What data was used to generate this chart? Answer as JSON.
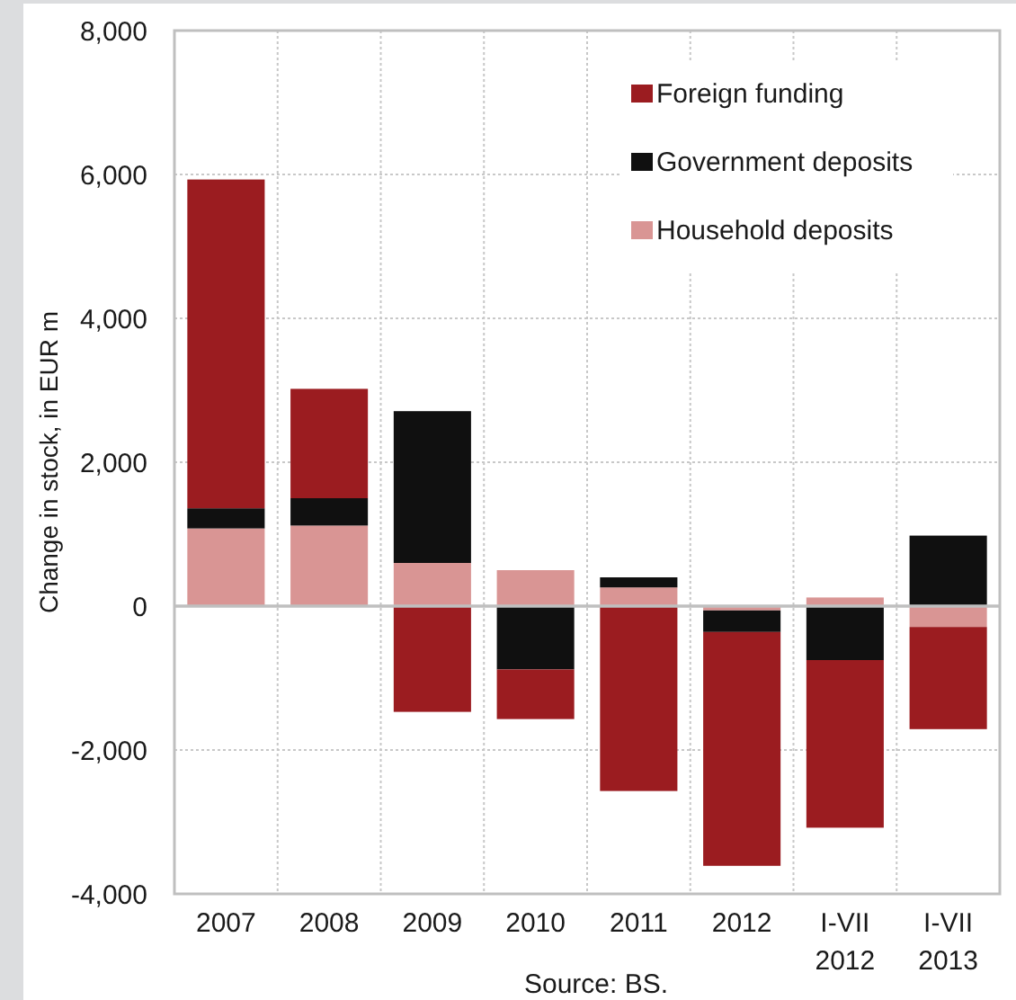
{
  "chart_data": {
    "type": "bar",
    "stacked": true,
    "ylabel": "Change in stock, in EUR m",
    "categories": [
      "2007",
      "2008",
      "2009",
      "2010",
      "2011",
      "2012",
      "I-VII 2012",
      "I-VII 2013"
    ],
    "series": [
      {
        "name": "Household deposits",
        "color": "#d99594",
        "values": [
          1080,
          1120,
          600,
          500,
          260,
          -60,
          120,
          -290
        ]
      },
      {
        "name": "Government deposits",
        "color": "#101010",
        "values": [
          280,
          380,
          2110,
          -880,
          140,
          -300,
          -750,
          980
        ]
      },
      {
        "name": "Foreign funding",
        "color": "#9b1c20",
        "values": [
          4570,
          1520,
          -1470,
          -690,
          -2570,
          -3250,
          -2330,
          -1420
        ]
      }
    ],
    "ylim": [
      -4000,
      8000
    ],
    "yticks": [
      {
        "value": -4000,
        "label": "-4,000"
      },
      {
        "value": -2000,
        "label": "-2,000"
      },
      0,
      {
        "value": 2000,
        "label": "2,000"
      },
      {
        "value": 4000,
        "label": "4,000"
      },
      {
        "value": 6000,
        "label": "6,000"
      },
      {
        "value": 8000,
        "label": "8,000"
      }
    ],
    "grid": true,
    "legend": "top right",
    "annotations": [
      "Source: BS."
    ]
  }
}
